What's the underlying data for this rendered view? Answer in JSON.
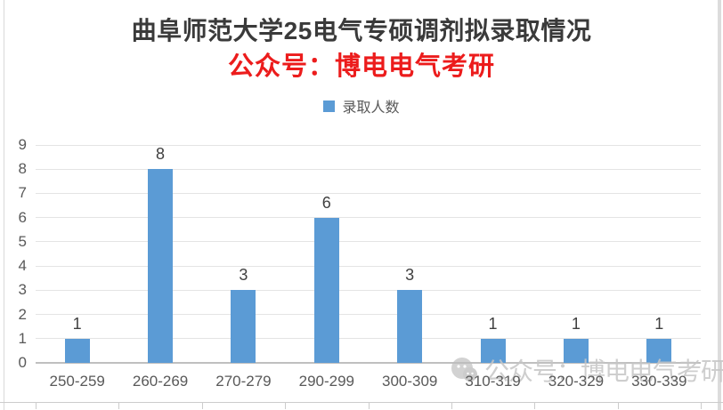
{
  "page": {
    "title": "曲阜师范大学25电气专硕调剂拟录取情况",
    "subtitle": "公众号：博电电气考研"
  },
  "legend": {
    "label": "录取人数"
  },
  "watermark": {
    "icon": "wechat-icon",
    "text": "公众号：博电电气考研"
  },
  "chart_data": {
    "type": "bar",
    "title": "曲阜师范大学25电气专硕调剂拟录取情况",
    "subtitle": "公众号：博电电气考研",
    "series_name": "录取人数",
    "categories": [
      "250-259",
      "260-269",
      "270-279",
      "290-299",
      "300-309",
      "310-319",
      "320-329",
      "330-339"
    ],
    "values": [
      1,
      8,
      3,
      6,
      3,
      1,
      1,
      1
    ],
    "xlabel": "",
    "ylabel": "",
    "ylim": [
      0,
      9
    ],
    "yticks": [
      0,
      1,
      2,
      3,
      4,
      5,
      6,
      7,
      8,
      9
    ],
    "grid": true,
    "legend_position": "top",
    "data_labels": true
  },
  "colors": {
    "bar": "#5b9bd5",
    "title_text": "#3a3a3a",
    "subtitle_red": "#ec1c1c",
    "axis_text": "#595959",
    "value_label": "#404040",
    "gridline": "#e4e4e4",
    "axis_line": "#bfbfbf",
    "watermark": "#c6c6c6"
  }
}
